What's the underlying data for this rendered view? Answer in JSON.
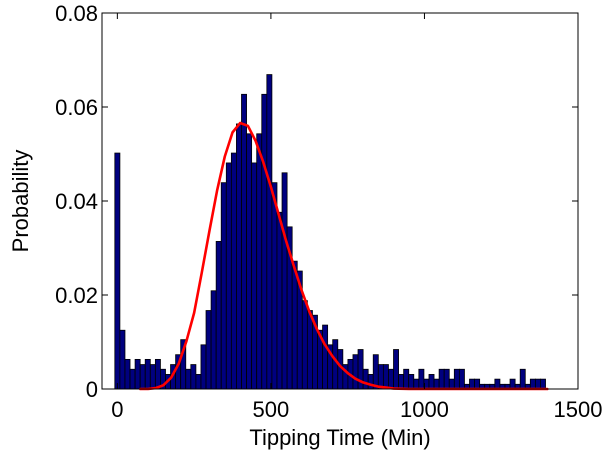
{
  "chart_data": {
    "type": "bar",
    "title": "",
    "xlabel": "Tipping Time (Min)",
    "ylabel": "Probability",
    "xlim": [
      -50,
      1500
    ],
    "ylim": [
      0,
      0.08
    ],
    "xticks": [
      0,
      500,
      1000,
      1500
    ],
    "yticks": [
      0,
      0.02,
      0.04,
      0.06,
      0.08
    ],
    "xtick_labels": [
      "0",
      "500",
      "1000",
      "1500"
    ],
    "ytick_labels": [
      "0",
      "0.02",
      "0.04",
      "0.06",
      "0.08"
    ],
    "grid": false,
    "legend": "none",
    "bar_width": 16.5,
    "colors": {
      "bar_fill": "#00007F",
      "bar_edge": "#000000",
      "curve": "#FF0000",
      "axes": "#000000"
    },
    "series": [
      {
        "type": "histogram",
        "x": [
          0,
          16.5,
          33,
          49.5,
          66,
          82.5,
          99,
          115.5,
          132,
          148.5,
          165,
          181.5,
          198,
          214.5,
          231,
          247.5,
          264,
          280.5,
          297,
          313.5,
          330,
          346.5,
          363,
          379.5,
          396,
          412.5,
          429,
          445.5,
          462,
          478.5,
          495,
          511.5,
          528,
          544.5,
          561,
          577.5,
          594,
          610.5,
          627,
          643.5,
          660,
          676.5,
          693,
          709.5,
          726,
          742.5,
          759,
          775.5,
          792,
          808.5,
          825,
          841.5,
          858,
          874.5,
          891,
          907.5,
          924,
          940.5,
          957,
          973.5,
          990,
          1006.5,
          1023,
          1039.5,
          1056,
          1072.5,
          1089,
          1105.5,
          1122,
          1138.5,
          1155,
          1171.5,
          1188,
          1204.5,
          1221,
          1237.5,
          1254,
          1270.5,
          1287,
          1303.5,
          1320,
          1336.5,
          1353,
          1369.5,
          1386
        ],
        "values": [
          0.0502,
          0.0125,
          0.0063,
          0.0042,
          0.0063,
          0.0052,
          0.0063,
          0.0052,
          0.0063,
          0.0042,
          0.0031,
          0.0052,
          0.0073,
          0.0105,
          0.0042,
          0.0052,
          0.0031,
          0.0094,
          0.0167,
          0.0209,
          0.0314,
          0.0439,
          0.0481,
          0.0502,
          0.0564,
          0.0627,
          0.0543,
          0.0481,
          0.0543,
          0.0627,
          0.0669,
          0.0439,
          0.0376,
          0.046,
          0.0345,
          0.0272,
          0.0251,
          0.0188,
          0.0167,
          0.0157,
          0.0125,
          0.0136,
          0.0094,
          0.0105,
          0.0084,
          0.0052,
          0.0063,
          0.0073,
          0.0084,
          0.0042,
          0.0031,
          0.0073,
          0.0052,
          0.0052,
          0.0042,
          0.0084,
          0.0031,
          0.0042,
          0.0031,
          0.0021,
          0.0042,
          0.0021,
          0.0031,
          0.0021,
          0.0042,
          0.0042,
          0.0021,
          0.0042,
          0.0042,
          0.001,
          0.0021,
          0.0021,
          0.001,
          0.001,
          0.001,
          0.0021,
          0.001,
          0.001,
          0.0021,
          0.001,
          0.0042,
          0.001,
          0.0021,
          0.0021,
          0.0021
        ]
      },
      {
        "type": "line",
        "x": [
          75,
          100,
          125,
          150,
          175,
          200,
          225,
          250,
          275,
          300,
          325,
          350,
          375,
          400,
          425,
          450,
          475,
          500,
          525,
          550,
          575,
          600,
          625,
          650,
          675,
          700,
          725,
          750,
          775,
          800,
          825,
          850,
          875,
          900,
          950,
          1000,
          1050,
          1100,
          1150,
          1200,
          1250,
          1300,
          1350,
          1400
        ],
        "values": [
          0.0,
          0.0,
          0.0002,
          0.0008,
          0.0024,
          0.0054,
          0.0102,
          0.0162,
          0.0248,
          0.0337,
          0.0423,
          0.0495,
          0.0546,
          0.0566,
          0.056,
          0.0528,
          0.0483,
          0.043,
          0.0372,
          0.0314,
          0.0261,
          0.021,
          0.0165,
          0.0127,
          0.0095,
          0.007,
          0.0049,
          0.0034,
          0.0022,
          0.0014,
          0.0009,
          0.0005,
          0.0003,
          0.0001,
          0.0,
          0.0,
          0.0,
          0.0,
          0.0,
          0.0,
          0.0,
          0.0,
          0.0,
          0.0
        ]
      }
    ]
  }
}
